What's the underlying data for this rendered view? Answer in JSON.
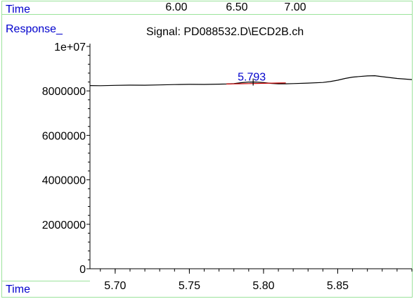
{
  "top_axis": {
    "label": "Time",
    "ticks": [
      "6.00",
      "6.50",
      "7.00"
    ]
  },
  "header": {
    "y_label": "Response_",
    "signal_title": "Signal: PD088532.D\\ECD2B.ch"
  },
  "chart_data": {
    "type": "line",
    "xlabel": "Time",
    "ylabel": "Response_",
    "title": "Signal: PD088532.D\\ECD2B.ch",
    "xlim": [
      5.683,
      5.9
    ],
    "ylim": [
      0,
      10000000
    ],
    "x_ticks": [
      5.7,
      5.75,
      5.8,
      5.85
    ],
    "x_tick_labels": [
      "5.70",
      "5.75",
      "5.80",
      "5.85"
    ],
    "y_ticks": [
      0,
      2000000,
      4000000,
      6000000,
      8000000,
      10000000
    ],
    "y_tick_labels": [
      "0",
      "2000000",
      "4000000",
      "6000000",
      "8000000",
      "1e+07"
    ],
    "series": [
      {
        "color": "#000000",
        "x": [
          5.683,
          5.69,
          5.7,
          5.71,
          5.72,
          5.73,
          5.74,
          5.75,
          5.76,
          5.77,
          5.775,
          5.78,
          5.785,
          5.79,
          5.795,
          5.8,
          5.805,
          5.81,
          5.815,
          5.82,
          5.83,
          5.84,
          5.845,
          5.85,
          5.855,
          5.86,
          5.865,
          5.87,
          5.875,
          5.88,
          5.89,
          5.9
        ],
        "y": [
          8240000,
          8235000,
          8250000,
          8260000,
          8255000,
          8270000,
          8285000,
          8295000,
          8290000,
          8305000,
          8310000,
          8330000,
          8370000,
          8400000,
          8400000,
          8375000,
          8340000,
          8320000,
          8320000,
          8330000,
          8350000,
          8380000,
          8420000,
          8480000,
          8560000,
          8620000,
          8650000,
          8675000,
          8685000,
          8640000,
          8560000,
          8510000
        ]
      },
      {
        "color": "#cc0000",
        "x": [
          5.775,
          5.78,
          5.785,
          5.79,
          5.795,
          5.8,
          5.805,
          5.81,
          5.815
        ],
        "y": [
          8310000,
          8316000,
          8323000,
          8330000,
          8336000,
          8343000,
          8349000,
          8356000,
          8360000
        ]
      }
    ],
    "annotations": [
      {
        "text": "5.793",
        "x": 5.793,
        "y": 8400000,
        "color": "#0000cc"
      }
    ]
  }
}
